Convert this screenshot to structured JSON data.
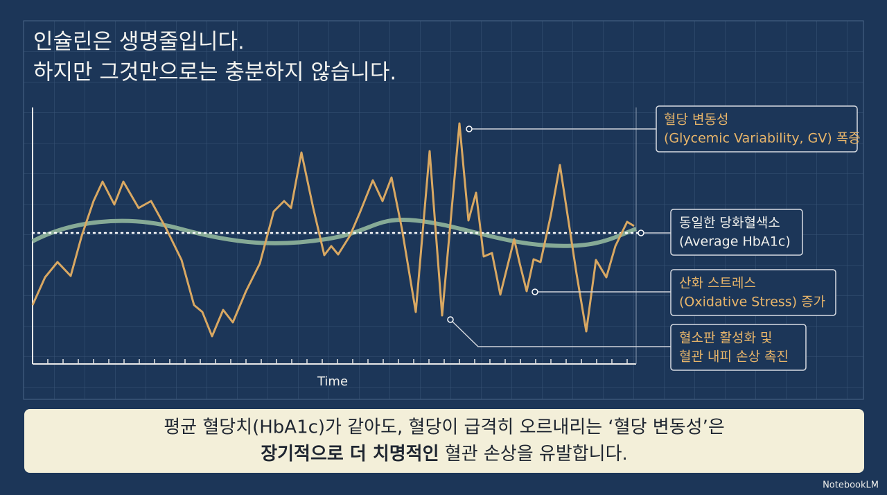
{
  "title": {
    "lines": [
      "인슐린은 생명줄입니다.",
      "하지만 그것만으로는 충분하지 않습니다."
    ]
  },
  "chart": {
    "x_label": "Time"
  },
  "annotations": [
    {
      "lines": [
        "혈당 변동성",
        "(Glycemic Variability, GV) 폭증"
      ]
    },
    {
      "lines": [
        "동일한 당화혈색소",
        "(Average HbA1c)"
      ]
    },
    {
      "lines": [
        "산화 스트레스",
        "(Oxidative Stress) 증가"
      ]
    },
    {
      "lines": [
        "혈소판 활성화 및",
        "혈관 내피 손상 촉진"
      ]
    }
  ],
  "footer": {
    "line1": "평균 혈당치(HbA1c)가 같아도, 혈당이 급격히 오르내리는 ‘혈당 변동성’은",
    "line2_bold": "장기적으로 더 치명적인",
    "line2_rest": " 혈관 손상을 유발합니다."
  },
  "brand": "NotebookLM"
}
